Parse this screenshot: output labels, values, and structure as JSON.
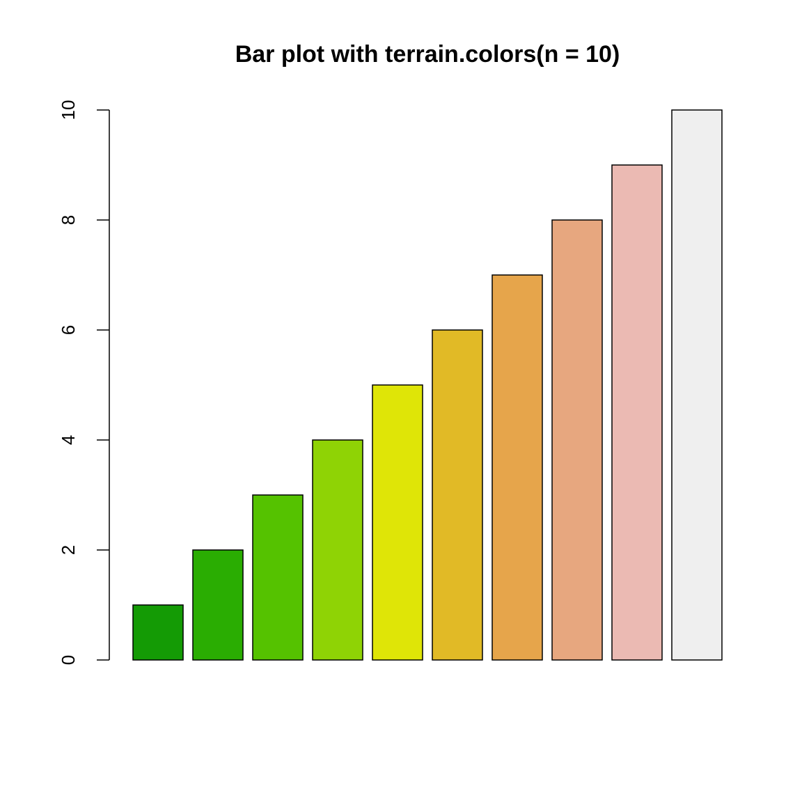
{
  "chart_data": {
    "type": "bar",
    "title": "Bar plot with terrain.colors(n = 10)",
    "values": [
      1,
      2,
      3,
      4,
      5,
      6,
      7,
      8,
      9,
      10
    ],
    "colors": [
      "#149b05",
      "#2aad02",
      "#55c200",
      "#8fd305",
      "#dfe507",
      "#e1ba26",
      "#e6a54b",
      "#e7a77f",
      "#ebbab3",
      "#efefef"
    ],
    "ylim": [
      0,
      10
    ],
    "yticks": [
      0,
      2,
      4,
      6,
      8,
      10
    ]
  }
}
